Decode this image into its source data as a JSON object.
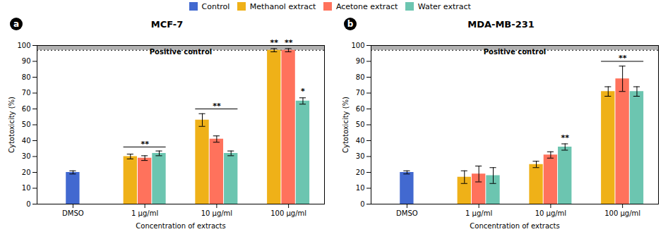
{
  "chart_data": [
    {
      "type": "bar",
      "title": "MCF-7",
      "panel_label": "a",
      "xlabel": "Concentration of extracts",
      "ylabel": "Cytotoxicity (%)",
      "categories": [
        "DMSO",
        "1 μg/ml",
        "10 μg/ml",
        "100 μg/ml"
      ],
      "series": [
        {
          "name": "Control",
          "values": [
            20,
            null,
            null,
            null
          ],
          "errors": [
            1,
            null,
            null,
            null
          ]
        },
        {
          "name": "Methanol extract",
          "values": [
            null,
            30,
            53,
            97
          ],
          "errors": [
            null,
            1.5,
            4,
            1
          ]
        },
        {
          "name": "Acetone extract",
          "values": [
            null,
            29,
            41,
            97
          ],
          "errors": [
            null,
            1.5,
            2,
            1
          ]
        },
        {
          "name": "Water extract",
          "values": [
            null,
            32,
            32,
            65
          ],
          "errors": [
            null,
            1.5,
            1.5,
            2
          ]
        }
      ],
      "ylim": [
        0,
        100
      ],
      "yticks": [
        0,
        10,
        20,
        30,
        40,
        50,
        60,
        70,
        80,
        90,
        100
      ],
      "grid": false,
      "legend": "top",
      "bands": [
        {
          "from": 97,
          "to": 100,
          "label": "Positive control",
          "color": "#b0b0b0"
        }
      ],
      "annotations": [
        {
          "text": "**",
          "category": "1 μg/ml",
          "from": "Methanol extract",
          "to": "Water extract",
          "y": 36
        },
        {
          "text": "**",
          "category": "10 μg/ml",
          "from": "Methanol extract",
          "to": "Water extract",
          "y": 60
        },
        {
          "text": "**",
          "category": "100 μg/ml",
          "series": "Methanol extract",
          "y": 100
        },
        {
          "text": "**",
          "category": "100 μg/ml",
          "series": "Acetone extract",
          "y": 100
        },
        {
          "text": "*",
          "category": "100 μg/ml",
          "series": "Water extract",
          "y": 69
        }
      ]
    },
    {
      "type": "bar",
      "title": "MDA-MB-231",
      "panel_label": "b",
      "xlabel": "Concentration of extracts",
      "ylabel": "Cytotoxicity (%)",
      "categories": [
        "DMSO",
        "1 μg/ml",
        "10 μg/ml",
        "100 μg/ml"
      ],
      "series": [
        {
          "name": "Control",
          "values": [
            20,
            null,
            null,
            null
          ],
          "errors": [
            1,
            null,
            null,
            null
          ]
        },
        {
          "name": "Methanol extract",
          "values": [
            null,
            17,
            25,
            71
          ],
          "errors": [
            null,
            4,
            2,
            3
          ]
        },
        {
          "name": "Acetone extract",
          "values": [
            null,
            19,
            31,
            79
          ],
          "errors": [
            null,
            5,
            2,
            8
          ]
        },
        {
          "name": "Water extract",
          "values": [
            null,
            18,
            36,
            71
          ],
          "errors": [
            null,
            5,
            2,
            3
          ]
        }
      ],
      "ylim": [
        0,
        100
      ],
      "yticks": [
        0,
        10,
        20,
        30,
        40,
        50,
        60,
        70,
        80,
        90,
        100
      ],
      "grid": false,
      "legend": "top",
      "bands": [
        {
          "from": 97,
          "to": 100,
          "label": "Positive control",
          "color": "#b0b0b0"
        }
      ],
      "annotations": [
        {
          "text": "**",
          "category": "10 μg/ml",
          "series": "Water extract",
          "y": 40
        },
        {
          "text": "**",
          "category": "100 μg/ml",
          "from": "Methanol extract",
          "to": "Water extract",
          "y": 90
        }
      ]
    }
  ]
}
